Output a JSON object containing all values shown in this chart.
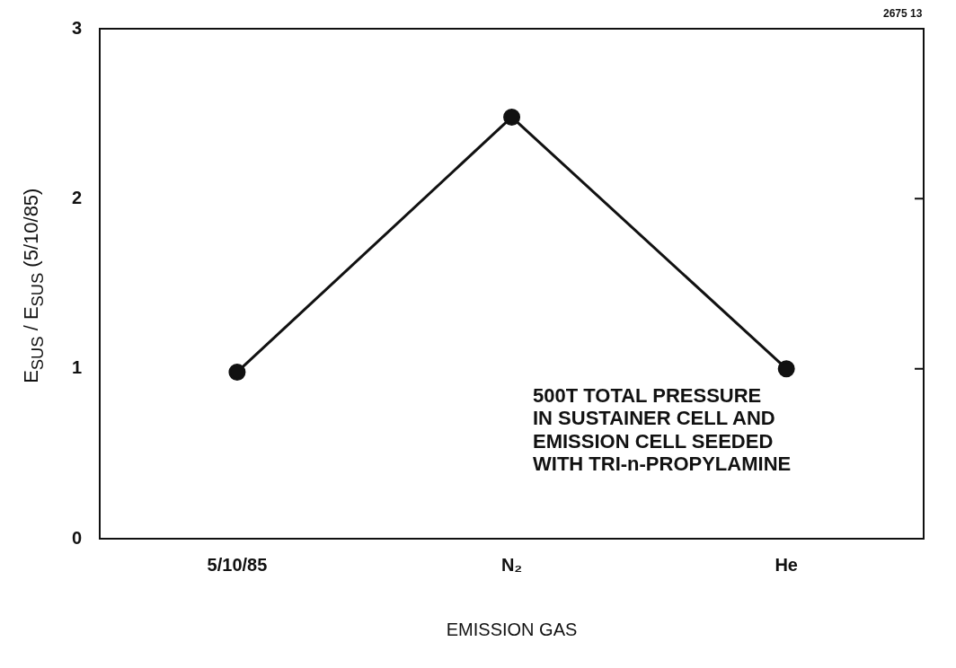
{
  "chart_data": {
    "type": "line",
    "categories": [
      "5/10/85",
      "N₂",
      "He"
    ],
    "values": [
      0.98,
      2.48,
      1.0
    ],
    "color": "#111111",
    "marker": "circle",
    "line_style": "solid",
    "ylim": [
      0,
      3
    ],
    "yticks": [
      0,
      1,
      2,
      3
    ],
    "grid": false,
    "legend": false,
    "xlabel": "EMISSION GAS",
    "ylabel": "E$_{SUS}$ / E$_{SUS}$ (5/10/85)",
    "annotations": [
      "500T TOTAL PRESSURE\nIN SUSTAINER CELL AND\nEMISSION CELL SEEDED\nWITH TRI-n-PROPYLAMINE",
      "2675 13"
    ]
  }
}
